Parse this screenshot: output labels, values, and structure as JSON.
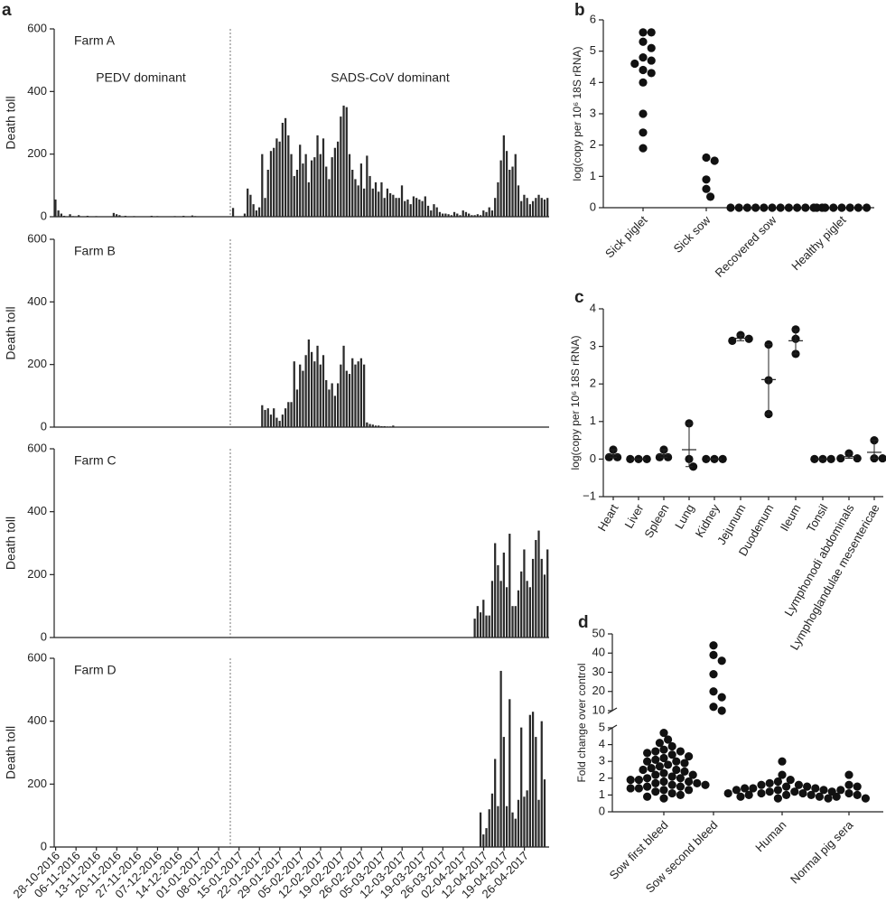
{
  "chart_data": [
    {
      "panel": "a",
      "type": "bar",
      "y_label": "Death toll",
      "annotations": [
        "PEDV dominant",
        "SADS-CoV dominant"
      ],
      "ylim": [
        0,
        600
      ],
      "yticks": [
        0,
        200,
        400,
        600
      ],
      "categories": [
        "28-10-2016",
        null,
        null,
        null,
        null,
        null,
        null,
        "06-11-2016",
        null,
        null,
        null,
        null,
        null,
        null,
        "13-11-2016",
        null,
        null,
        null,
        null,
        null,
        null,
        "20-11-2016",
        null,
        null,
        null,
        null,
        null,
        null,
        "27-11-2016",
        null,
        null,
        null,
        null,
        null,
        null,
        "07-12-2016",
        null,
        null,
        null,
        null,
        null,
        null,
        "14-12-2016",
        null,
        null,
        null,
        null,
        null,
        null,
        "01-01-2017",
        null,
        null,
        null,
        null,
        null,
        null,
        "08-01-2017",
        null,
        null,
        null,
        null,
        null,
        null,
        "15-01-2017",
        null,
        null,
        null,
        null,
        null,
        null,
        "22-01-2017",
        null,
        null,
        null,
        null,
        null,
        null,
        "29-01-2017",
        null,
        null,
        null,
        null,
        null,
        null,
        "05-02-2017",
        null,
        null,
        null,
        null,
        null,
        null,
        "12-02-2017",
        null,
        null,
        null,
        null,
        null,
        null,
        "19-02-2017",
        null,
        null,
        null,
        null,
        null,
        null,
        "26-02-2017",
        null,
        null,
        null,
        null,
        null,
        null,
        "05-03-2017",
        null,
        null,
        null,
        null,
        null,
        null,
        "12-03-2017",
        null,
        null,
        null,
        null,
        null,
        null,
        "19-03-2017",
        null,
        null,
        null,
        null,
        null,
        null,
        "26-03-2017",
        null,
        null,
        null,
        null,
        null,
        null,
        "02-04-2017",
        null,
        null,
        null,
        null,
        null,
        null,
        "12-04-2017",
        null,
        null,
        null,
        null,
        null,
        null,
        "19-04-2017",
        null,
        null,
        null,
        null,
        null,
        null,
        "26-04-2017",
        null,
        null,
        null,
        null,
        null,
        null,
        null,
        null
      ],
      "series": [
        {
          "name": "Farm A",
          "color": "#2b2b2b",
          "values": [
            55,
            20,
            10,
            3,
            0,
            8,
            2,
            0,
            5,
            0,
            0,
            3,
            0,
            0,
            2,
            0,
            0,
            0,
            0,
            0,
            12,
            8,
            5,
            0,
            3,
            0,
            0,
            2,
            0,
            0,
            0,
            0,
            0,
            3,
            0,
            2,
            0,
            0,
            0,
            0,
            0,
            2,
            0,
            0,
            3,
            0,
            0,
            4,
            2,
            0,
            0,
            0,
            0,
            0,
            0,
            0,
            0,
            0,
            0,
            0,
            0,
            28,
            0,
            0,
            0,
            10,
            90,
            70,
            40,
            20,
            30,
            200,
            60,
            150,
            210,
            220,
            250,
            240,
            300,
            315,
            260,
            200,
            130,
            150,
            230,
            170,
            200,
            110,
            180,
            190,
            260,
            200,
            250,
            160,
            120,
            190,
            220,
            240,
            320,
            355,
            350,
            200,
            150,
            120,
            100,
            170,
            90,
            195,
            130,
            90,
            110,
            80,
            110,
            60,
            90,
            75,
            70,
            60,
            60,
            100,
            50,
            55,
            40,
            65,
            60,
            55,
            50,
            65,
            35,
            20,
            40,
            30,
            15,
            10,
            10,
            8,
            5,
            15,
            10,
            5,
            20,
            15,
            10,
            5,
            5,
            8,
            5,
            20,
            15,
            30,
            20,
            60,
            110,
            180,
            260,
            210,
            150,
            160,
            200,
            100,
            50,
            70,
            60,
            40,
            50,
            60,
            70,
            60,
            55,
            60
          ]
        },
        {
          "name": "Farm B",
          "color": "#2b2b2b",
          "values": [
            0,
            0,
            0,
            0,
            0,
            0,
            0,
            0,
            0,
            0,
            0,
            0,
            0,
            0,
            0,
            0,
            0,
            0,
            0,
            0,
            0,
            0,
            0,
            0,
            0,
            0,
            0,
            0,
            0,
            0,
            0,
            0,
            0,
            0,
            0,
            0,
            0,
            0,
            0,
            0,
            0,
            0,
            0,
            0,
            0,
            0,
            0,
            0,
            0,
            0,
            0,
            0,
            0,
            0,
            0,
            0,
            0,
            0,
            0,
            0,
            0,
            0,
            0,
            0,
            0,
            0,
            0,
            0,
            0,
            0,
            0,
            70,
            55,
            60,
            40,
            60,
            30,
            20,
            40,
            60,
            80,
            80,
            210,
            120,
            200,
            180,
            230,
            280,
            240,
            210,
            260,
            200,
            230,
            150,
            120,
            140,
            100,
            140,
            200,
            260,
            180,
            170,
            220,
            200,
            210,
            220,
            200,
            15,
            10,
            8,
            5,
            5,
            3,
            3,
            2,
            2,
            5,
            0,
            0,
            0,
            0,
            0,
            0,
            0,
            0,
            0,
            0,
            0,
            0,
            0,
            0,
            0,
            0,
            0,
            0,
            0,
            0,
            0,
            0,
            0,
            0,
            0,
            0,
            0,
            0,
            0,
            0,
            0,
            0,
            0,
            0,
            0,
            0,
            0,
            0,
            0,
            0,
            0,
            0,
            0,
            0,
            0,
            0,
            0,
            0,
            0,
            0,
            0,
            0,
            0
          ]
        },
        {
          "name": "Farm C",
          "color": "#2b2b2b",
          "values": [
            0,
            0,
            0,
            0,
            0,
            0,
            0,
            0,
            0,
            0,
            0,
            0,
            0,
            0,
            0,
            0,
            0,
            0,
            0,
            0,
            0,
            0,
            0,
            0,
            0,
            0,
            0,
            0,
            0,
            0,
            0,
            0,
            0,
            0,
            0,
            0,
            0,
            0,
            0,
            0,
            0,
            0,
            0,
            0,
            0,
            0,
            0,
            0,
            0,
            0,
            0,
            0,
            0,
            0,
            0,
            0,
            0,
            0,
            0,
            0,
            0,
            0,
            0,
            0,
            0,
            0,
            0,
            0,
            0,
            0,
            0,
            0,
            0,
            0,
            0,
            0,
            0,
            0,
            0,
            0,
            0,
            0,
            0,
            0,
            0,
            0,
            0,
            0,
            0,
            0,
            0,
            0,
            0,
            0,
            0,
            0,
            0,
            0,
            0,
            0,
            0,
            0,
            0,
            0,
            0,
            0,
            0,
            0,
            0,
            0,
            0,
            0,
            0,
            0,
            0,
            0,
            0,
            0,
            0,
            0,
            0,
            0,
            0,
            0,
            0,
            0,
            0,
            0,
            0,
            0,
            0,
            0,
            0,
            0,
            0,
            0,
            0,
            0,
            0,
            0,
            0,
            0,
            0,
            0,
            60,
            100,
            80,
            120,
            70,
            70,
            180,
            300,
            230,
            180,
            270,
            160,
            330,
            100,
            100,
            150,
            210,
            280,
            180,
            160,
            250,
            310,
            340,
            250,
            200,
            280
          ]
        },
        {
          "name": "Farm D",
          "color": "#2b2b2b",
          "values": [
            0,
            0,
            0,
            0,
            0,
            0,
            0,
            0,
            0,
            0,
            0,
            0,
            0,
            0,
            0,
            0,
            0,
            0,
            0,
            0,
            0,
            0,
            0,
            0,
            0,
            0,
            0,
            0,
            0,
            0,
            0,
            0,
            0,
            0,
            0,
            0,
            0,
            0,
            0,
            0,
            0,
            0,
            0,
            0,
            0,
            0,
            0,
            0,
            0,
            0,
            0,
            0,
            0,
            0,
            0,
            0,
            0,
            0,
            0,
            0,
            0,
            0,
            0,
            0,
            0,
            0,
            0,
            0,
            0,
            0,
            0,
            0,
            0,
            0,
            0,
            0,
            0,
            0,
            0,
            0,
            0,
            0,
            0,
            0,
            0,
            0,
            0,
            0,
            0,
            0,
            0,
            0,
            0,
            0,
            0,
            0,
            0,
            0,
            0,
            0,
            0,
            0,
            0,
            0,
            0,
            0,
            0,
            0,
            0,
            0,
            0,
            0,
            0,
            0,
            0,
            0,
            0,
            0,
            0,
            0,
            0,
            0,
            0,
            0,
            0,
            0,
            0,
            0,
            0,
            0,
            0,
            0,
            0,
            0,
            0,
            0,
            0,
            0,
            0,
            0,
            0,
            0,
            0,
            0,
            0,
            0,
            110,
            40,
            60,
            120,
            170,
            280,
            130,
            560,
            350,
            130,
            470,
            110,
            90,
            150,
            380,
            160,
            180,
            420,
            430,
            350,
            150,
            400,
            215,
            0
          ]
        }
      ]
    },
    {
      "panel": "b",
      "type": "strip",
      "y_label": "log(copy per 10⁶ 18S rRNA)",
      "color": "#111111",
      "ylim": [
        0,
        6
      ],
      "yticks": [
        0,
        1,
        2,
        3,
        4,
        5,
        6
      ],
      "groups": [
        {
          "name": "Sick piglet",
          "values": [
            5.6,
            5.6,
            5.3,
            5.1,
            4.8,
            4.7,
            4.6,
            4.4,
            4.3,
            4.0,
            3.0,
            2.4,
            1.9
          ]
        },
        {
          "name": "Sick sow",
          "values": [
            1.6,
            1.5,
            0.9,
            0.6,
            0.35
          ]
        },
        {
          "name": "Recovered sow",
          "values": [
            0,
            0,
            0,
            0,
            0,
            0,
            0,
            0,
            0,
            0,
            0,
            0
          ]
        },
        {
          "name": "Healthy piglet",
          "values": [
            0,
            0,
            0,
            0,
            0,
            0,
            0
          ]
        }
      ]
    },
    {
      "panel": "c",
      "type": "strip",
      "y_label": "log(copy per 10⁶ 18S rRNA)",
      "color": "#111111",
      "error_bars": true,
      "ylim": [
        -1,
        4
      ],
      "yticks": [
        {
          "value": -1,
          "label": "−1"
        },
        0,
        1,
        2,
        3,
        4
      ],
      "groups": [
        {
          "name": "Heart",
          "values": [
            0.25,
            0.05,
            0.05
          ]
        },
        {
          "name": "Liver",
          "values": [
            0,
            0,
            0
          ]
        },
        {
          "name": "Spleen",
          "values": [
            0.25,
            0.05,
            0.05
          ]
        },
        {
          "name": "Lung",
          "values": [
            0.95,
            0,
            -0.2
          ]
        },
        {
          "name": "Kidney",
          "values": [
            0,
            0,
            0
          ]
        },
        {
          "name": "Jejunum",
          "values": [
            3.3,
            3.2,
            3.15
          ]
        },
        {
          "name": "Duodenum",
          "values": [
            3.05,
            2.1,
            1.2
          ]
        },
        {
          "name": "Ileum",
          "values": [
            3.45,
            3.2,
            2.8
          ]
        },
        {
          "name": "Tonsil",
          "values": [
            0,
            0,
            0
          ]
        },
        {
          "name": "Lymphonodi abdominals",
          "values": [
            0.15,
            0.02,
            0.02
          ]
        },
        {
          "name": "Lymphoglandulae mesentericae",
          "values": [
            0.5,
            0.02,
            0.02
          ]
        }
      ]
    },
    {
      "panel": "d",
      "type": "strip",
      "y_label": "Fold change over control",
      "color": "#111111",
      "ylim": [
        0,
        50
      ],
      "axis_break": [
        5,
        10
      ],
      "yticks": [
        0,
        1,
        2,
        3,
        4,
        5,
        10,
        20,
        30,
        40,
        50
      ],
      "groups": [
        {
          "name": "Sow first bleed",
          "values": [
            4.7,
            4.3,
            4.1,
            3.9,
            3.7,
            3.6,
            3.6,
            3.5,
            3.4,
            3.3,
            3.2,
            3.1,
            3.0,
            3.0,
            2.9,
            2.8,
            2.7,
            2.6,
            2.5,
            2.5,
            2.4,
            2.3,
            2.2,
            2.2,
            2.1,
            2.0,
            2.0,
            1.9,
            1.9,
            1.8,
            1.8,
            1.7,
            1.7,
            1.6,
            1.6,
            1.5,
            1.5,
            1.4,
            1.4,
            1.3,
            1.3,
            1.2,
            1.1,
            1.0,
            0.9,
            0.8
          ]
        },
        {
          "name": "Sow second bleed",
          "values": [
            44,
            39,
            36,
            29,
            20,
            17,
            12,
            10
          ]
        },
        {
          "name": "Human",
          "values": [
            3.0,
            2.2,
            1.9,
            1.8,
            1.7,
            1.6,
            1.6,
            1.5,
            1.5,
            1.4,
            1.4,
            1.4,
            1.3,
            1.3,
            1.3,
            1.2,
            1.2,
            1.2,
            1.1,
            1.1,
            1.1,
            1.0,
            1.0,
            1.0,
            0.9,
            0.9,
            0.8
          ]
        },
        {
          "name": "Normal pig sera",
          "values": [
            2.2,
            1.6,
            1.5,
            1.3,
            1.1,
            1.0,
            0.9,
            0.8,
            0.8
          ]
        }
      ]
    }
  ]
}
